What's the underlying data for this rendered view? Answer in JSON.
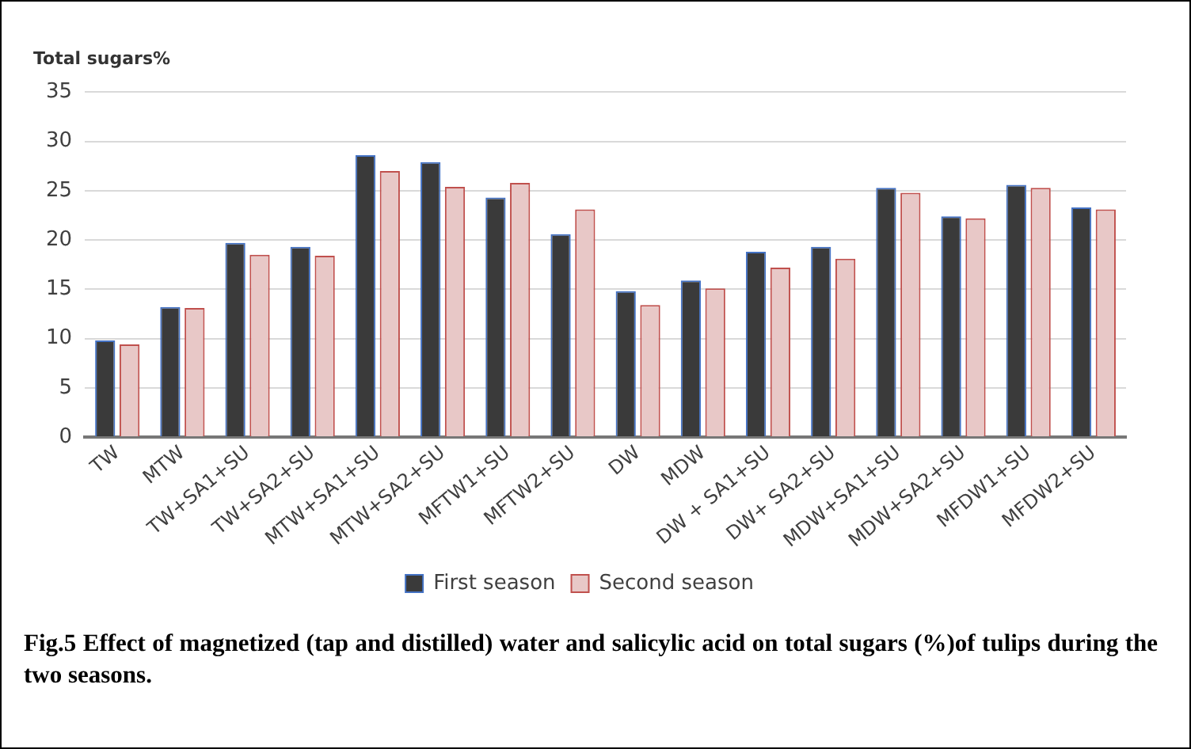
{
  "chart_data": {
    "type": "bar",
    "ylabel": "Total sugars%",
    "categories": [
      "TW",
      "MTW",
      "TW+SA1+SU",
      "TW+SA2+SU",
      "MTW+SA1+SU",
      "MTW+SA2+SU",
      "MFTW1+SU",
      "MFTW2+SU",
      "DW",
      "MDW",
      "DW + SA1+SU",
      "DW+ SA2+SU",
      "MDW+SA1+SU",
      "MDW+SA2+SU",
      "MFDW1+SU",
      "MFDW2+SU"
    ],
    "series": [
      {
        "name": "First season",
        "color": "#3a3a3a",
        "values": [
          9.8,
          13.2,
          19.7,
          19.3,
          28.6,
          27.9,
          24.3,
          20.6,
          14.8,
          15.9,
          18.8,
          19.3,
          25.3,
          22.4,
          25.6,
          23.3
        ]
      },
      {
        "name": "Second season",
        "color": "#e8c8c7",
        "values": [
          9.4,
          13.1,
          18.5,
          18.4,
          27.0,
          25.4,
          25.8,
          23.1,
          13.4,
          15.1,
          17.2,
          18.1,
          24.8,
          22.2,
          25.3,
          23.1
        ]
      }
    ],
    "ylim": [
      0,
      35
    ],
    "yticks": [
      0,
      5,
      10,
      15,
      20,
      25,
      30,
      35
    ],
    "grid": "y",
    "legend": "bottom",
    "annotations": [
      "Fig.5 Effect of magnetized (tap and distilled) water and salicylic acid on total sugars (%)of tulips during the two seasons."
    ]
  }
}
